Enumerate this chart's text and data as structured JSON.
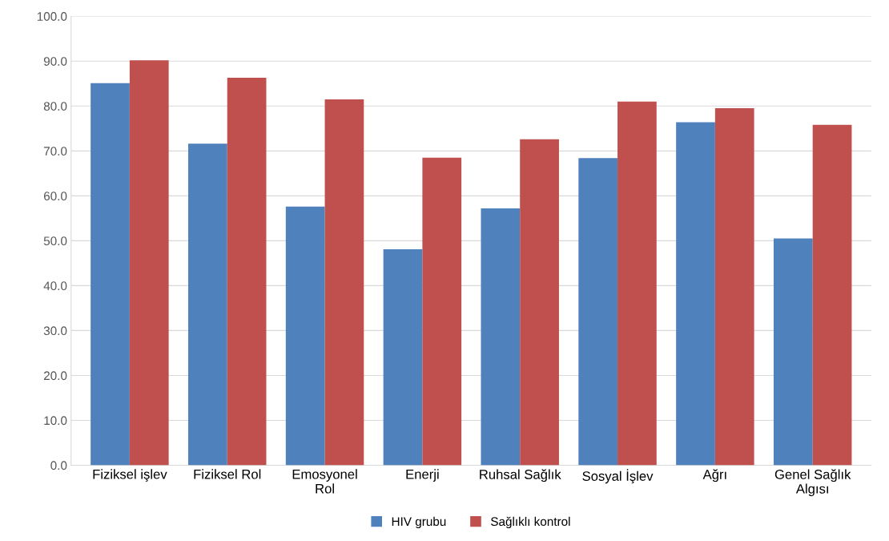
{
  "chart_data": {
    "type": "bar",
    "categories": [
      "Fiziksel işlev",
      "Fiziksel Rol",
      "Emosyonel\nRol",
      "Enerji",
      "Ruhsal Sağlık",
      "Sosyal İşlev",
      "Ağrı",
      "Genel Sağlık\nAlgısı"
    ],
    "series": [
      {
        "name": "HIV grubu",
        "color": "#4f81bd",
        "values": [
          85.1,
          71.6,
          57.6,
          48.1,
          57.2,
          68.4,
          76.4,
          50.5
        ]
      },
      {
        "name": "Sağlıklı kontrol",
        "color": "#c0504d",
        "values": [
          90.2,
          86.3,
          81.5,
          68.5,
          72.6,
          81.0,
          79.5,
          75.8
        ]
      }
    ],
    "ylim": [
      0,
      100
    ],
    "yticks": [
      {
        "value": 0,
        "label": "0.0"
      },
      {
        "value": 10,
        "label": "10.0"
      },
      {
        "value": 20,
        "label": "20.0"
      },
      {
        "value": 30,
        "label": "30.0"
      },
      {
        "value": 40,
        "label": "40.0"
      },
      {
        "value": 50,
        "label": "50.0"
      },
      {
        "value": 60,
        "label": "60.0"
      },
      {
        "value": 70,
        "label": "70.0"
      },
      {
        "value": 80,
        "label": "80.0"
      },
      {
        "value": 90,
        "label": "90.0"
      },
      {
        "value": 100,
        "label": "100.0"
      }
    ],
    "grid": "y",
    "legend": "bottom"
  }
}
